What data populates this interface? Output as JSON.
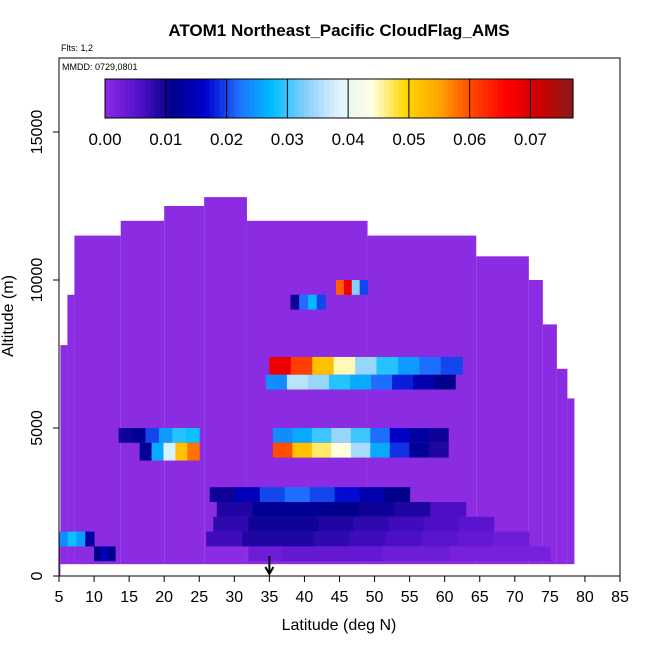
{
  "chart_data": {
    "type": "heatmap",
    "title": "ATOM1 Northeast_Pacific CloudFlag_AMS",
    "flights_text": "Flts: 1,2",
    "dates_text": "MMDD: 0729,0801",
    "xlabel": "Latitude (deg N)",
    "ylabel": "Altitude (m)",
    "xlim": [
      5,
      85
    ],
    "ylim": [
      0,
      17500
    ],
    "xticks": [
      "5",
      "10",
      "15",
      "20",
      "25",
      "30",
      "35",
      "40",
      "45",
      "50",
      "55",
      "60",
      "65",
      "70",
      "75",
      "80",
      "85"
    ],
    "yticks": [
      "0",
      "5000",
      "10000",
      "15000"
    ],
    "colorbar": {
      "ticks": [
        "0.00",
        "0.01",
        "0.02",
        "0.03",
        "0.04",
        "0.05",
        "0.06",
        "0.07"
      ],
      "range": [
        0.0,
        0.077
      ],
      "colors": [
        "#8b2be2",
        "#5511cc",
        "#00008b",
        "#0000cd",
        "#1e6fff",
        "#00bfff",
        "#87cefa",
        "#e0f4ff",
        "#ffffe0",
        "#ffd700",
        "#ffa500",
        "#ff4500",
        "#ff0000",
        "#cc0000",
        "#8b1a1a"
      ]
    },
    "background_value": 0.0,
    "envelope": [
      {
        "lat": [
          5.2,
          6.2
        ],
        "alt": [
          400,
          7800
        ]
      },
      {
        "lat": [
          6.2,
          7.2
        ],
        "alt": [
          400,
          9500
        ]
      },
      {
        "lat": [
          7.2,
          13.8
        ],
        "alt": [
          400,
          11500
        ]
      },
      {
        "lat": [
          13.8,
          20.0
        ],
        "alt": [
          400,
          12000
        ]
      },
      {
        "lat": [
          20.0,
          25.7
        ],
        "alt": [
          400,
          12500
        ]
      },
      {
        "lat": [
          25.7,
          31.8
        ],
        "alt": [
          400,
          12800
        ]
      },
      {
        "lat": [
          31.8,
          49.0
        ],
        "alt": [
          400,
          12000
        ]
      },
      {
        "lat": [
          49.0,
          64.5
        ],
        "alt": [
          400,
          11500
        ]
      },
      {
        "lat": [
          64.5,
          72.0
        ],
        "alt": [
          400,
          10800
        ]
      },
      {
        "lat": [
          72.0,
          74.0
        ],
        "alt": [
          400,
          10000
        ]
      },
      {
        "lat": [
          74.0,
          76.0
        ],
        "alt": [
          400,
          8500
        ]
      },
      {
        "lat": [
          76.0,
          77.5
        ],
        "alt": [
          400,
          7000
        ]
      },
      {
        "lat": [
          77.5,
          78.5
        ],
        "alt": [
          400,
          6000
        ]
      },
      {
        "lat": [
          5.0,
          5.2
        ],
        "alt": [
          0,
          1500
        ]
      }
    ],
    "cells": [
      {
        "lat": [
          5.0,
          10.0
        ],
        "alt": [
          1000,
          1500
        ],
        "values": [
          0.024,
          0.028,
          0.025,
          0.013
        ]
      },
      {
        "lat": [
          10.0,
          13.0
        ],
        "alt": [
          500,
          1000
        ],
        "values": [
          0.011,
          0.015,
          0.011
        ]
      },
      {
        "lat": [
          13.5,
          25.0
        ],
        "alt": [
          4500,
          5000
        ],
        "values": [
          0.01,
          0.012,
          0.02,
          0.025,
          0.029,
          0.028
        ]
      },
      {
        "lat": [
          16.5,
          25.0
        ],
        "alt": [
          3900,
          4500
        ],
        "values": [
          0.012,
          0.026,
          0.038,
          0.052,
          0.058
        ]
      },
      {
        "lat": [
          26.5,
          55.0
        ],
        "alt": [
          2500,
          3000
        ],
        "values": [
          0.01,
          0.015,
          0.02,
          0.022,
          0.02,
          0.017,
          0.014,
          0.011
        ]
      },
      {
        "lat": [
          27.5,
          63.0
        ],
        "alt": [
          2000,
          2500
        ],
        "values": [
          0.009,
          0.012,
          0.012,
          0.011,
          0.01,
          0.009,
          0.006
        ]
      },
      {
        "lat": [
          27.0,
          67.0
        ],
        "alt": [
          1500,
          2000
        ],
        "values": [
          0.008,
          0.01,
          0.01,
          0.009,
          0.008,
          0.007,
          0.006,
          0.005
        ]
      },
      {
        "lat": [
          26.0,
          72.0
        ],
        "alt": [
          1000,
          1500
        ],
        "values": [
          0.007,
          0.009,
          0.009,
          0.008,
          0.007,
          0.006,
          0.005,
          0.004,
          0.003
        ]
      },
      {
        "lat": [
          32.0,
          75.0
        ],
        "alt": [
          500,
          1000
        ],
        "values": [
          0.003,
          0.004,
          0.004,
          0.004,
          0.003,
          0.003,
          0.002,
          0.002,
          0.002
        ]
      },
      {
        "lat": [
          35.5,
          60.5
        ],
        "alt": [
          4500,
          5000
        ],
        "values": [
          0.024,
          0.026,
          0.03,
          0.034,
          0.03,
          0.022,
          0.016,
          0.013,
          0.01
        ]
      },
      {
        "lat": [
          35.5,
          60.5
        ],
        "alt": [
          4000,
          4500
        ],
        "values": [
          0.06,
          0.052,
          0.047,
          0.044,
          0.035,
          0.026,
          0.019,
          0.012,
          0.009
        ]
      },
      {
        "lat": [
          35.0,
          62.5
        ],
        "alt": [
          6800,
          7400
        ],
        "values": [
          0.068,
          0.061,
          0.052,
          0.045,
          0.034,
          0.029,
          0.025,
          0.022,
          0.02
        ]
      },
      {
        "lat": [
          34.5,
          61.5
        ],
        "alt": [
          6300,
          6800
        ],
        "values": [
          0.024,
          0.036,
          0.034,
          0.029,
          0.026,
          0.022,
          0.018,
          0.014,
          0.011
        ]
      },
      {
        "lat": [
          44.5,
          49.0
        ],
        "alt": [
          9500,
          10000
        ],
        "values": [
          0.059,
          0.068,
          0.033,
          0.02
        ]
      },
      {
        "lat": [
          38.0,
          43.0
        ],
        "alt": [
          9000,
          9500
        ],
        "values": [
          0.01,
          0.022,
          0.027,
          0.02
        ]
      }
    ],
    "arrow_marker": {
      "lat": 35.0,
      "alt": 0
    },
    "flight_points": []
  }
}
